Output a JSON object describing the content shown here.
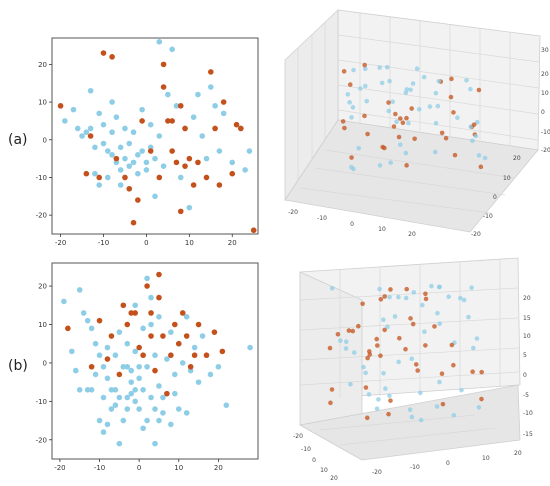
{
  "labels": {
    "a": "(a)",
    "b": "(b)"
  },
  "colors": {
    "light": "#8ecde6",
    "dark": "#c4511b",
    "frame": "#555555"
  },
  "chart_data": [
    {
      "type": "scatter",
      "panel": "(a) 2D",
      "xlim": [
        -22,
        26
      ],
      "ylim": [
        -25,
        27
      ],
      "xticks": [
        -20,
        -10,
        0,
        10,
        20
      ],
      "yticks": [
        -20,
        -10,
        0,
        10,
        20
      ],
      "grid": false,
      "series": [
        {
          "color": "light",
          "points": [
            [
              -19,
              5
            ],
            [
              -16,
              3
            ],
            [
              -15,
              1
            ],
            [
              -14,
              2
            ],
            [
              -13,
              13
            ],
            [
              -13,
              3
            ],
            [
              -12,
              -2
            ],
            [
              -12,
              -9
            ],
            [
              -11,
              7
            ],
            [
              -10,
              4
            ],
            [
              -10,
              -1
            ],
            [
              -9,
              -3
            ],
            [
              -9,
              -10
            ],
            [
              -8,
              10
            ],
            [
              -8,
              2
            ],
            [
              -8,
              -4
            ],
            [
              -7,
              -6
            ],
            [
              -7,
              6
            ],
            [
              -6,
              -2
            ],
            [
              -6,
              -8
            ],
            [
              -5,
              -5
            ],
            [
              -5,
              3
            ],
            [
              -4,
              -7
            ],
            [
              -4,
              -1
            ],
            [
              -3,
              -6
            ],
            [
              -3,
              2
            ],
            [
              -2,
              -4
            ],
            [
              -2,
              -9
            ],
            [
              -1,
              -3
            ],
            [
              -1,
              8
            ],
            [
              0,
              -6
            ],
            [
              0,
              -8
            ],
            [
              1,
              -2
            ],
            [
              1,
              4
            ],
            [
              2,
              -5
            ],
            [
              3,
              26
            ],
            [
              3,
              1
            ],
            [
              4,
              -7
            ],
            [
              5,
              12
            ],
            [
              6,
              24
            ],
            [
              7,
              9
            ],
            [
              8,
              -10
            ],
            [
              9,
              3
            ],
            [
              10,
              -18
            ],
            [
              11,
              6
            ],
            [
              12,
              12
            ],
            [
              13,
              1
            ],
            [
              14,
              -5
            ],
            [
              15,
              14
            ],
            [
              16,
              9
            ],
            [
              17,
              -3
            ],
            [
              18,
              7
            ],
            [
              20,
              -6
            ],
            [
              22,
              3
            ],
            [
              23,
              -8
            ],
            [
              24,
              -3
            ],
            [
              -17,
              8
            ],
            [
              -11,
              -12
            ],
            [
              -6,
              -12
            ],
            [
              2,
              -15
            ]
          ]
        },
        {
          "color": "dark",
          "points": [
            [
              -20,
              9
            ],
            [
              -13,
              1
            ],
            [
              -10,
              23
            ],
            [
              -8,
              22
            ],
            [
              -11,
              -10
            ],
            [
              -7,
              -5
            ],
            [
              -5,
              -10
            ],
            [
              -4,
              -13
            ],
            [
              -3,
              -22
            ],
            [
              -2,
              -16
            ],
            [
              -1,
              5
            ],
            [
              1,
              -3
            ],
            [
              3,
              -10
            ],
            [
              4,
              20
            ],
            [
              4,
              14
            ],
            [
              5,
              5
            ],
            [
              6,
              5
            ],
            [
              6,
              -3
            ],
            [
              7,
              -6
            ],
            [
              8,
              -19
            ],
            [
              8,
              9
            ],
            [
              9,
              3
            ],
            [
              10,
              -5
            ],
            [
              11,
              -12
            ],
            [
              12,
              -6
            ],
            [
              14,
              -10
            ],
            [
              15,
              18
            ],
            [
              16,
              3
            ],
            [
              17,
              -12
            ],
            [
              18,
              10
            ],
            [
              20,
              -9
            ],
            [
              21,
              4
            ],
            [
              22,
              3
            ],
            [
              25,
              -24
            ],
            [
              -14,
              -9
            ],
            [
              9,
              -7
            ]
          ]
        }
      ]
    },
    {
      "type": "scatter",
      "panel": "(a) 3D",
      "xticks": [
        -20,
        -10,
        0,
        10,
        20
      ],
      "yticks": [
        -20,
        -10,
        0,
        10,
        20
      ],
      "zticks": [
        -20,
        -10,
        0,
        10,
        20,
        30
      ]
    },
    {
      "type": "scatter",
      "panel": "(b) 2D",
      "xlim": [
        -22,
        30
      ],
      "ylim": [
        -25,
        26
      ],
      "xticks": [
        -20,
        -10,
        0,
        10,
        20
      ],
      "yticks": [
        -20,
        -10,
        0,
        10,
        20
      ],
      "grid": false,
      "series": [
        {
          "color": "light",
          "points": [
            [
              -19,
              16
            ],
            [
              -15,
              19
            ],
            [
              -14,
              13
            ],
            [
              -13,
              11
            ],
            [
              -12,
              9
            ],
            [
              -11,
              5
            ],
            [
              -10,
              2
            ],
            [
              -9,
              -1
            ],
            [
              -8,
              4
            ],
            [
              -8,
              -4
            ],
            [
              -7,
              -7
            ],
            [
              -6,
              -7
            ],
            [
              -6,
              2
            ],
            [
              -5,
              8
            ],
            [
              -5,
              -9
            ],
            [
              -4,
              -15
            ],
            [
              -3,
              -12
            ],
            [
              -3,
              5
            ],
            [
              -2,
              -2
            ],
            [
              -2,
              -5
            ],
            [
              -1,
              -10
            ],
            [
              -1,
              3
            ],
            [
              0,
              -4
            ],
            [
              0,
              -12
            ],
            [
              1,
              -7
            ],
            [
              1,
              9
            ],
            [
              2,
              22
            ],
            [
              2,
              -1
            ],
            [
              3,
              17
            ],
            [
              3,
              -9
            ],
            [
              4,
              -12
            ],
            [
              4,
              2
            ],
            [
              5,
              12
            ],
            [
              5,
              -6
            ],
            [
              6,
              -9
            ],
            [
              7,
              1
            ],
            [
              8,
              8
            ],
            [
              9,
              -3
            ],
            [
              10,
              5
            ],
            [
              11,
              0
            ],
            [
              12,
              12
            ],
            [
              13,
              -2
            ],
            [
              14,
              4
            ],
            [
              15,
              -5
            ],
            [
              16,
              7
            ],
            [
              18,
              -3
            ],
            [
              20,
              -1
            ],
            [
              22,
              -11
            ],
            [
              28,
              4
            ],
            [
              -12,
              -7
            ],
            [
              -9,
              -9
            ],
            [
              -7,
              -12
            ],
            [
              -4,
              -1
            ],
            [
              1,
              -17
            ],
            [
              -17,
              3
            ],
            [
              -16,
              -2
            ],
            [
              -15,
              -7
            ],
            [
              -13,
              -7
            ],
            [
              -11,
              -3
            ],
            [
              -10,
              -15
            ],
            [
              -8,
              -16
            ],
            [
              -6,
              -11
            ],
            [
              -3,
              -9
            ],
            [
              -2,
              -8
            ],
            [
              -1,
              -7
            ],
            [
              0,
              -1
            ],
            [
              2,
              -15
            ],
            [
              4,
              -21
            ],
            [
              6,
              -13
            ],
            [
              8,
              -16
            ],
            [
              10,
              -12
            ],
            [
              12,
              -13
            ],
            [
              9,
              -8
            ],
            [
              -9,
              -18
            ],
            [
              -5,
              -21
            ],
            [
              -3,
              -1
            ],
            [
              -1,
              15
            ],
            [
              3,
              10
            ],
            [
              5,
              -15
            ]
          ]
        },
        {
          "color": "dark",
          "points": [
            [
              -18,
              9
            ],
            [
              -12,
              -1
            ],
            [
              -10,
              11
            ],
            [
              -7,
              7
            ],
            [
              -5,
              -3
            ],
            [
              -4,
              15
            ],
            [
              -3,
              10
            ],
            [
              -2,
              13
            ],
            [
              -1,
              13
            ],
            [
              0,
              4
            ],
            [
              1,
              2
            ],
            [
              2,
              20
            ],
            [
              3,
              13
            ],
            [
              4,
              -2
            ],
            [
              5,
              23
            ],
            [
              5,
              17
            ],
            [
              6,
              7
            ],
            [
              7,
              -8
            ],
            [
              8,
              2
            ],
            [
              9,
              10
            ],
            [
              10,
              5
            ],
            [
              11,
              13
            ],
            [
              12,
              7
            ],
            [
              13,
              -1
            ],
            [
              14,
              2
            ],
            [
              15,
              10
            ],
            [
              17,
              2
            ],
            [
              19,
              8
            ],
            [
              21,
              3
            ],
            [
              3,
              7
            ],
            [
              -8,
              1
            ]
          ]
        }
      ]
    },
    {
      "type": "scatter",
      "panel": "(b) 3D",
      "xticks": [
        -20,
        -10,
        0,
        10,
        20
      ],
      "yticks": [
        -20,
        -10,
        0,
        10,
        20
      ],
      "zticks": [
        -15,
        -10,
        -5,
        0,
        5,
        10,
        15,
        20
      ]
    }
  ]
}
